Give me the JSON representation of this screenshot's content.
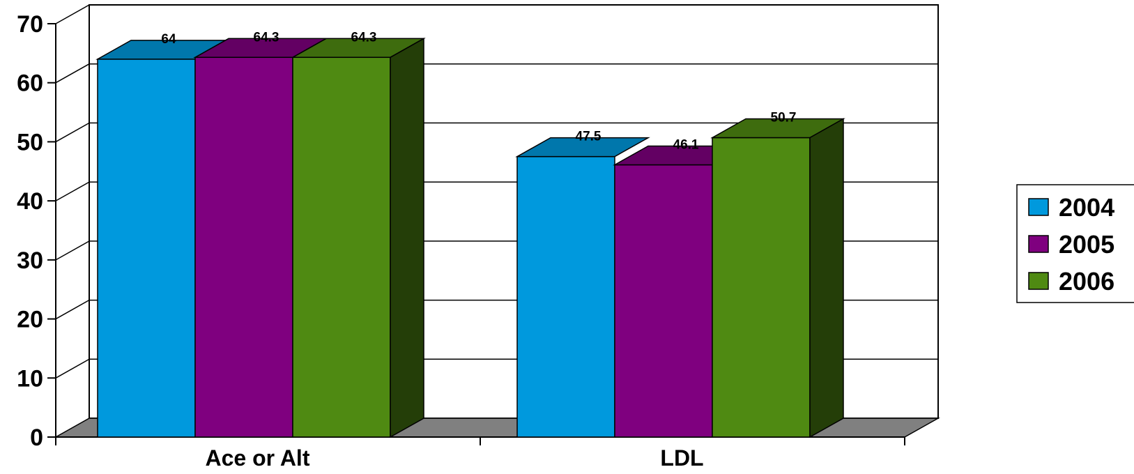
{
  "chart_data": {
    "type": "bar",
    "title": "",
    "xlabel": "",
    "ylabel": "",
    "categories": [
      "Ace or Alt",
      "LDL"
    ],
    "series": [
      {
        "name": "2004",
        "values": [
          64,
          47.5
        ],
        "labels": [
          "64",
          "47.5"
        ],
        "color": "#0099dd"
      },
      {
        "name": "2005",
        "values": [
          64.3,
          46.1
        ],
        "labels": [
          "64.3",
          "46.1"
        ],
        "color": "#7f007f"
      },
      {
        "name": "2006",
        "values": [
          64.3,
          50.7
        ],
        "labels": [
          "64.3",
          "50.7"
        ],
        "color": "#4f8a12"
      }
    ],
    "ylim": [
      0,
      70
    ],
    "yticks": [
      "0",
      "10",
      "20",
      "30",
      "40",
      "50",
      "60",
      "70"
    ],
    "grid": true,
    "legend_position": "right",
    "style": "3d-clustered-column"
  }
}
